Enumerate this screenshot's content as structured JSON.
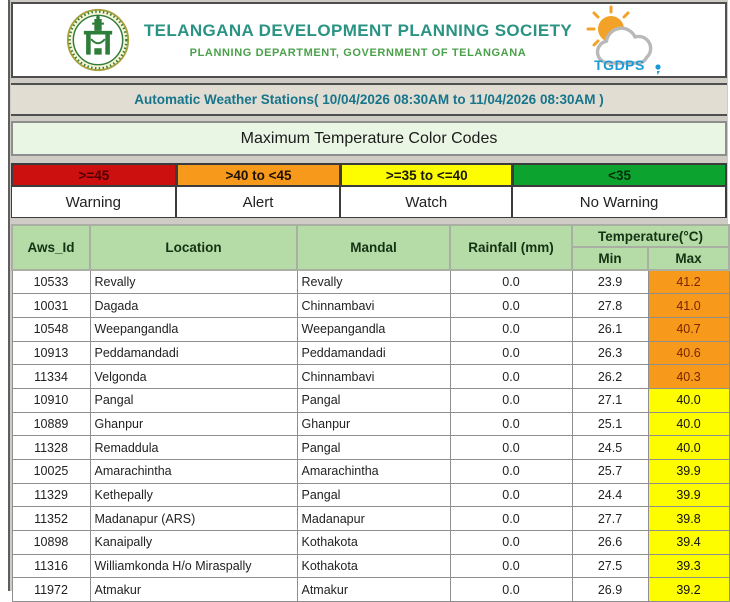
{
  "header": {
    "title": "TELANGANA DEVELOPMENT PLANNING SOCIETY",
    "subtitle": "PLANNING DEPARTMENT, GOVERNMENT OF TELANGANA",
    "brand": "TGDPS"
  },
  "subheader": {
    "text": "Automatic Weather Stations( 10/04/2026 08:30AM to 11/04/2026 08:30AM )"
  },
  "color_codes": {
    "title": "Maximum Temperature Color Codes",
    "bands": [
      {
        "range": ">=45",
        "label": "Warning",
        "color": "#cc1010"
      },
      {
        "range": ">40 to <45",
        "label": "Alert",
        "color": "#f79a1b"
      },
      {
        "range": ">=35 to <=40",
        "label": "Watch",
        "color": "#fdfd00"
      },
      {
        "range": "<35",
        "label": "No Warning",
        "color": "#0ca32e"
      }
    ]
  },
  "table": {
    "columns": [
      "Aws_Id",
      "Location",
      "Mandal",
      "Rainfall (mm)"
    ],
    "temp_group": {
      "label": "Temperature(°C)",
      "sub_min": "Min",
      "sub_max": "Max"
    },
    "rows": [
      {
        "aws_id": "10533",
        "location": "Revally",
        "mandal": "Revally",
        "rainfall": "0.0",
        "min": "23.9",
        "max": "41.2",
        "max_level": "alert"
      },
      {
        "aws_id": "10031",
        "location": "Dagada",
        "mandal": "Chinnambavi",
        "rainfall": "0.0",
        "min": "27.8",
        "max": "41.0",
        "max_level": "alert"
      },
      {
        "aws_id": "10548",
        "location": "Weepangandla",
        "mandal": "Weepangandla",
        "rainfall": "0.0",
        "min": "26.1",
        "max": "40.7",
        "max_level": "alert"
      },
      {
        "aws_id": "10913",
        "location": "Peddamandadi",
        "mandal": "Peddamandadi",
        "rainfall": "0.0",
        "min": "26.3",
        "max": "40.6",
        "max_level": "alert"
      },
      {
        "aws_id": "11334",
        "location": "Velgonda",
        "mandal": "Chinnambavi",
        "rainfall": "0.0",
        "min": "26.2",
        "max": "40.3",
        "max_level": "alert"
      },
      {
        "aws_id": "10910",
        "location": "Pangal",
        "mandal": "Pangal",
        "rainfall": "0.0",
        "min": "27.1",
        "max": "40.0",
        "max_level": "watch"
      },
      {
        "aws_id": "10889",
        "location": "Ghanpur",
        "mandal": "Ghanpur",
        "rainfall": "0.0",
        "min": "25.1",
        "max": "40.0",
        "max_level": "watch"
      },
      {
        "aws_id": "11328",
        "location": "Remaddula",
        "mandal": "Pangal",
        "rainfall": "0.0",
        "min": "24.5",
        "max": "40.0",
        "max_level": "watch"
      },
      {
        "aws_id": "10025",
        "location": "Amarachintha",
        "mandal": "Amarachintha",
        "rainfall": "0.0",
        "min": "25.7",
        "max": "39.9",
        "max_level": "watch"
      },
      {
        "aws_id": "11329",
        "location": "Kethepally",
        "mandal": "Pangal",
        "rainfall": "0.0",
        "min": "24.4",
        "max": "39.9",
        "max_level": "watch"
      },
      {
        "aws_id": "11352",
        "location": "Madanapur (ARS)",
        "mandal": "Madanapur",
        "rainfall": "0.0",
        "min": "27.7",
        "max": "39.8",
        "max_level": "watch"
      },
      {
        "aws_id": "10898",
        "location": "Kanaipally",
        "mandal": "Kothakota",
        "rainfall": "0.0",
        "min": "26.6",
        "max": "39.4",
        "max_level": "watch"
      },
      {
        "aws_id": "11316",
        "location": "Williamkonda H/o Miraspally",
        "mandal": "Kothakota",
        "rainfall": "0.0",
        "min": "27.5",
        "max": "39.3",
        "max_level": "watch"
      },
      {
        "aws_id": "11972",
        "location": "Atmakur",
        "mandal": "Atmakur",
        "rainfall": "0.0",
        "min": "26.9",
        "max": "39.2",
        "max_level": "watch"
      }
    ]
  }
}
